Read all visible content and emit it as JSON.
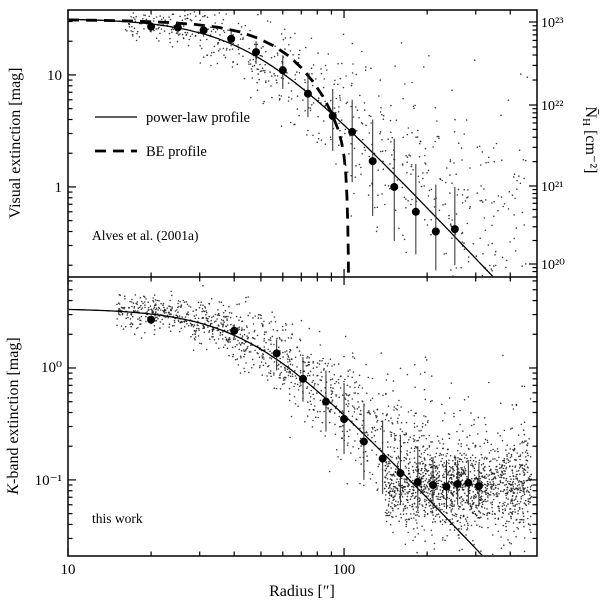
{
  "figure": {
    "bg": "#ffffff",
    "fg": "#000000"
  },
  "x_axis": {
    "label": "Radius [″]",
    "ticks": [
      {
        "v": 10,
        "label": "10"
      },
      {
        "v": 100,
        "label": "100"
      }
    ]
  },
  "chart_data": [
    {
      "type": "scatter",
      "panel": "top",
      "ylabel": "Visual extinction [mag]",
      "right_axis_label_parts": {
        "nbar": "N̄",
        "sub": "H",
        "units": " [cm⁻²]"
      },
      "annotation": "Alves et al. (2001a)",
      "legend": [
        {
          "style": "solid",
          "label": "power-law profile"
        },
        {
          "style": "dashed",
          "label": "BE profile"
        }
      ],
      "x_range": [
        10,
        500
      ],
      "y_range": [
        0.157,
        38
      ],
      "y_ticks": [
        {
          "v": 10,
          "label": "10"
        },
        {
          "v": 1,
          "label": "1"
        }
      ],
      "right_ticks": [
        {
          "label": "10²³"
        },
        {
          "label": "10²²"
        },
        {
          "label": "10²¹"
        },
        {
          "label": "10²⁰"
        }
      ],
      "power_law": {
        "A0": 32,
        "rc": 45,
        "alpha": 2.6
      },
      "be_profile": [
        [
          10,
          31
        ],
        [
          14,
          30.6
        ],
        [
          18,
          30.2
        ],
        [
          23,
          29.4
        ],
        [
          29,
          28.2
        ],
        [
          35,
          26.6
        ],
        [
          42,
          24.2
        ],
        [
          49,
          21.2
        ],
        [
          56,
          18
        ],
        [
          63,
          14.8
        ],
        [
          70,
          11.6
        ],
        [
          77,
          8.8
        ],
        [
          84,
          6.4
        ],
        [
          90,
          4.6
        ],
        [
          95,
          3.3
        ],
        [
          98,
          2.5
        ],
        [
          100,
          1.9
        ],
        [
          101.5,
          1.3
        ],
        [
          102.5,
          0.8
        ],
        [
          103.2,
          0.45
        ],
        [
          103.6,
          0.25
        ],
        [
          103.8,
          0.16
        ]
      ],
      "binned": [
        {
          "r": 20,
          "v": 27,
          "lo": 24,
          "hi": 30
        },
        {
          "r": 25,
          "v": 26.5,
          "lo": 23,
          "hi": 30
        },
        {
          "r": 31,
          "v": 25,
          "lo": 22,
          "hi": 28
        },
        {
          "r": 39,
          "v": 21,
          "lo": 18,
          "hi": 24.5
        },
        {
          "r": 48,
          "v": 16,
          "lo": 12.5,
          "hi": 20
        },
        {
          "r": 60,
          "v": 11,
          "lo": 7.5,
          "hi": 15
        },
        {
          "r": 74,
          "v": 6.8,
          "lo": 4.2,
          "hi": 10.5
        },
        {
          "r": 91,
          "v": 4.3,
          "lo": 2.1,
          "hi": 7.5
        },
        {
          "r": 107,
          "v": 3.1,
          "lo": 1.1,
          "hi": 6
        },
        {
          "r": 127,
          "v": 1.7,
          "lo": 0.55,
          "hi": 4
        },
        {
          "r": 152,
          "v": 1.0,
          "lo": 0.33,
          "hi": 2.7
        },
        {
          "r": 182,
          "v": 0.6,
          "lo": 0.25,
          "hi": 1.6
        },
        {
          "r": 215,
          "v": 0.4,
          "lo": 0.18,
          "hi": 1.05
        },
        {
          "r": 252,
          "v": 0.42,
          "lo": 0.2,
          "hi": 1.0
        }
      ],
      "scatter": {
        "seed": 20250,
        "count": 720,
        "r_min": 16,
        "r_max": 470,
        "floor": 0.5,
        "sigma_base": 0.07,
        "sigma_grow": 0.33,
        "sigma_ref_r": 22
      }
    },
    {
      "type": "scatter",
      "panel": "bottom",
      "ylabel_parts": {
        "em": "K",
        "rest": "-band extinction [mag]"
      },
      "annotation": "this work",
      "x_range": [
        10,
        500
      ],
      "y_range": [
        0.0209,
        6.5
      ],
      "y_ticks": [
        {
          "v": 1,
          "label": "10⁰"
        },
        {
          "v": 0.1,
          "label": "10⁻¹"
        }
      ],
      "power_law": {
        "A0": 3.4,
        "rc": 45,
        "alpha": 2.6
      },
      "binned": [
        {
          "r": 20,
          "v": 2.7,
          "lo": 2.45,
          "hi": 2.95
        },
        {
          "r": 40,
          "v": 2.15,
          "lo": 1.85,
          "hi": 2.45
        },
        {
          "r": 57,
          "v": 1.35,
          "lo": 0.95,
          "hi": 1.8
        },
        {
          "r": 71,
          "v": 0.8,
          "lo": 0.5,
          "hi": 1.25
        },
        {
          "r": 86,
          "v": 0.5,
          "lo": 0.27,
          "hi": 0.95
        },
        {
          "r": 100,
          "v": 0.35,
          "lo": 0.17,
          "hi": 0.72
        },
        {
          "r": 118,
          "v": 0.22,
          "lo": 0.1,
          "hi": 0.48
        },
        {
          "r": 138,
          "v": 0.155,
          "lo": 0.075,
          "hi": 0.34
        },
        {
          "r": 160,
          "v": 0.115,
          "lo": 0.06,
          "hi": 0.25
        },
        {
          "r": 185,
          "v": 0.096,
          "lo": 0.055,
          "hi": 0.2
        },
        {
          "r": 210,
          "v": 0.09,
          "lo": 0.055,
          "hi": 0.16
        },
        {
          "r": 235,
          "v": 0.087,
          "lo": 0.055,
          "hi": 0.15
        },
        {
          "r": 258,
          "v": 0.092,
          "lo": 0.06,
          "hi": 0.15
        },
        {
          "r": 282,
          "v": 0.094,
          "lo": 0.06,
          "hi": 0.15
        },
        {
          "r": 308,
          "v": 0.088,
          "lo": 0.058,
          "hi": 0.14
        }
      ],
      "scatter": {
        "seed": 9901,
        "count": 1500,
        "r_min": 15,
        "r_max": 478,
        "floor": 0.07,
        "sigma_base": 0.07,
        "sigma_grow": 0.3,
        "sigma_ref_r": 25
      },
      "noise_cloud": {
        "seed": 771,
        "count": 1200,
        "r_min": 140,
        "r_max": 478,
        "center": 0.088,
        "sigma": 0.17
      }
    }
  ]
}
